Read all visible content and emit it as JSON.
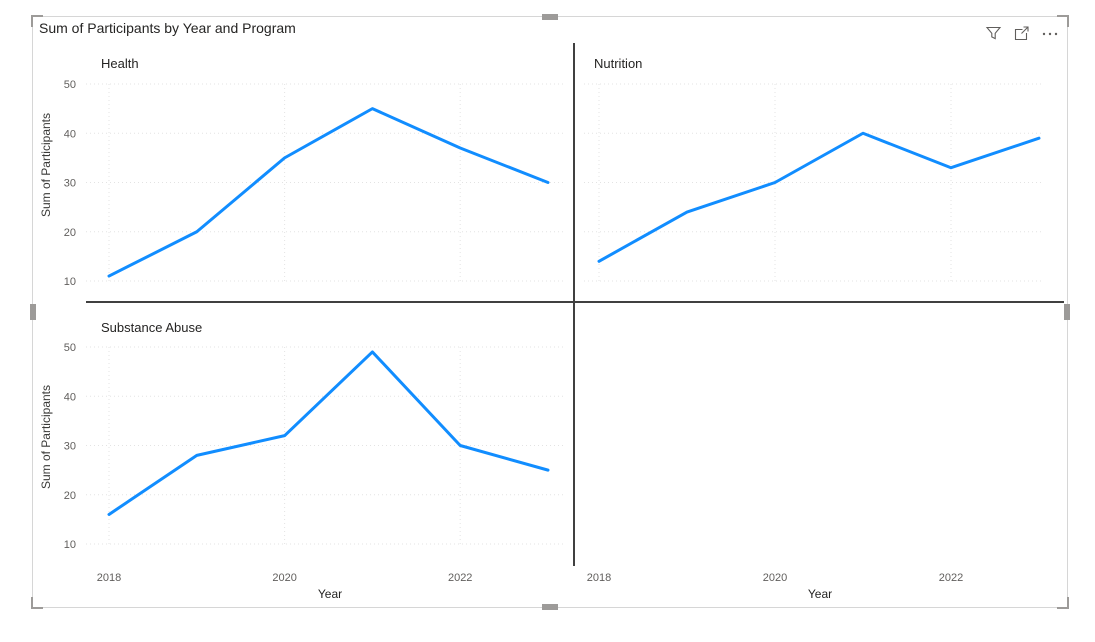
{
  "visual": {
    "title": "Sum of Participants by Year and Program",
    "toolbar": {
      "filter_tooltip": "Filters",
      "focus_tooltip": "Focus mode",
      "more_tooltip": "More options"
    }
  },
  "colors": {
    "line": "#118DFF",
    "divider": "#404040",
    "grid": "#E3E3E3",
    "axis_text": "#605E5C",
    "title_text": "#252423"
  },
  "chart_data": {
    "type": "line",
    "title": "Sum of Participants by Year and Program",
    "small_multiples_by": "Program",
    "xlabel": "Year",
    "ylabel": "Sum of Participants",
    "x": [
      2018,
      2019,
      2020,
      2021,
      2022,
      2023
    ],
    "x_ticks": [
      2018,
      2020,
      2022
    ],
    "y_ticks": [
      50,
      40,
      30,
      20,
      10
    ],
    "ylim": [
      5,
      55
    ],
    "grid": "dotted",
    "legend": "none",
    "line_color": "#118DFF",
    "panels": [
      {
        "name": "Health",
        "values": [
          11,
          20,
          35,
          45,
          37,
          30
        ]
      },
      {
        "name": "Nutrition",
        "values": [
          14,
          24,
          30,
          40,
          33,
          39
        ]
      },
      {
        "name": "Substance Abuse",
        "values": [
          16,
          28,
          32,
          49,
          30,
          25
        ]
      }
    ]
  }
}
